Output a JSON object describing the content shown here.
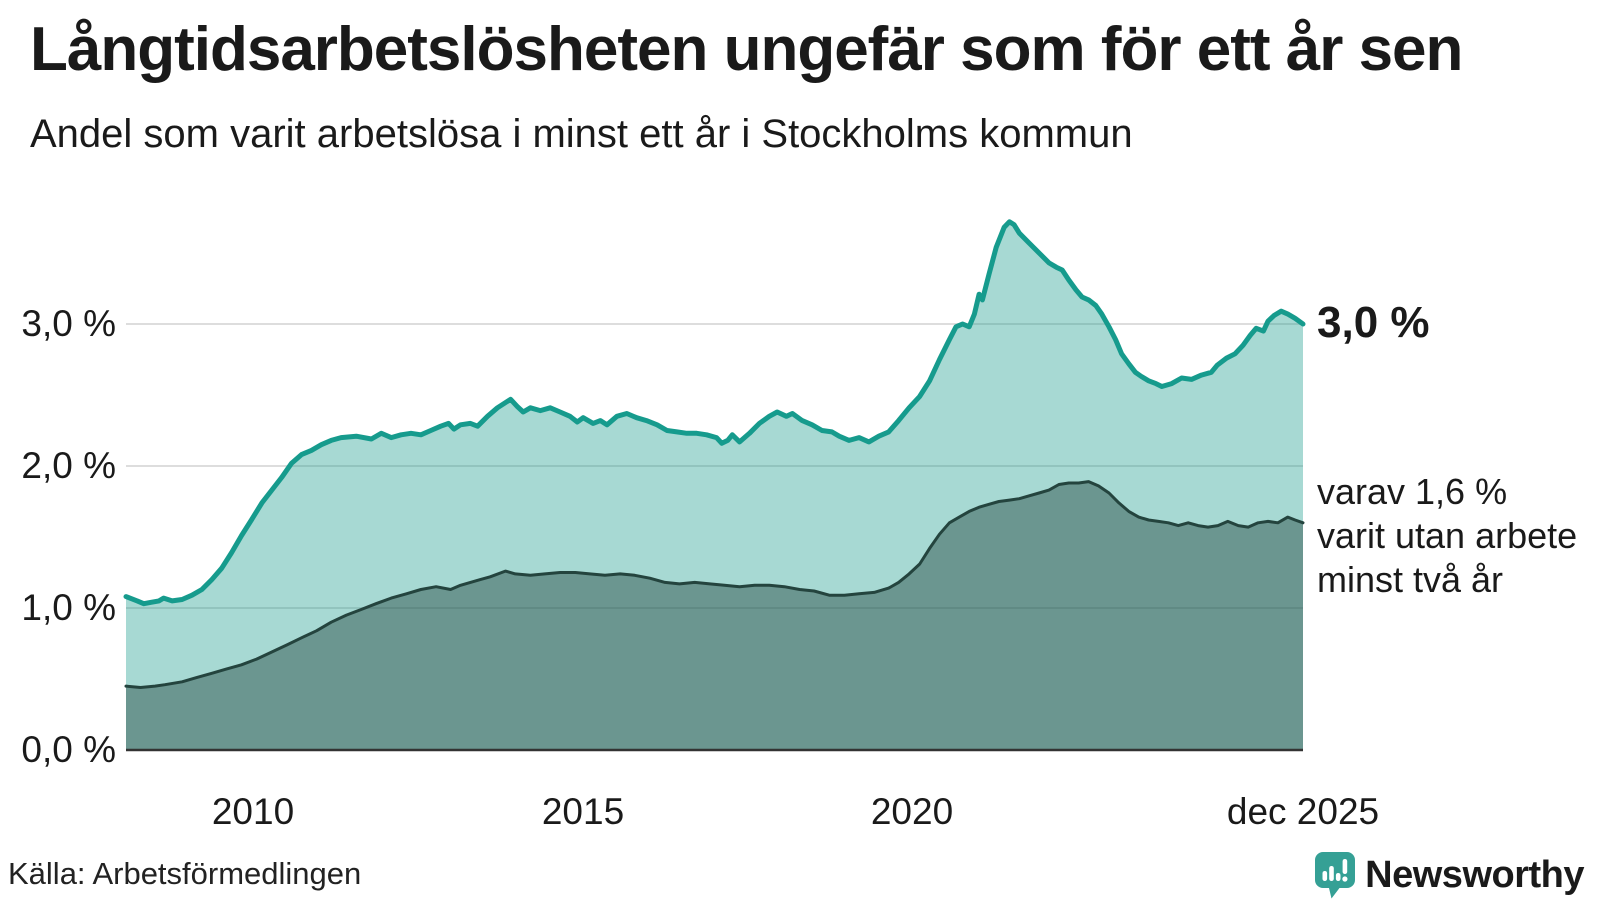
{
  "title": "Långtidsarbetslösheten ungefär som för ett år sen",
  "subtitle": "Andel som varit arbetslösa i minst ett år i Stockholms kommun",
  "source": "Källa: Arbetsförmedlingen",
  "branding": {
    "wordmark": "Newsworthy",
    "icon": "newsworthy-speech-bubble-bar-chart-icon",
    "color": "#35a095"
  },
  "annotations": {
    "total_end_label": "3,0 %",
    "two_year_lines": [
      "varav 1,6 %",
      "varit utan arbete",
      "minst två år"
    ]
  },
  "colors": {
    "total_line": "#169b8d",
    "total_fill": "rgba(23,154,140,0.38)",
    "two_year_line": "#24443e",
    "two_year_fill": "rgba(36,68,62,0.45)",
    "gridline": "#dddddd",
    "axis_line": "#333333",
    "text": "#1a1a1a"
  },
  "chart_data": {
    "type": "area",
    "title": "Långtidsarbetslösheten ungefär som för ett år sen",
    "subtitle": "Andel som varit arbetslösa i minst ett år i Stockholms kommun",
    "unit": "%",
    "x_domain": [
      2008.08,
      2025.92
    ],
    "ylim": [
      0,
      3.95
    ],
    "grid": "horizontal",
    "legend": "inline-annotations",
    "y_ticks": [
      {
        "value": 0,
        "label": "0,0 %"
      },
      {
        "value": 1,
        "label": "1,0 %"
      },
      {
        "value": 2,
        "label": "2,0 %"
      },
      {
        "value": 3,
        "label": "3,0 %"
      }
    ],
    "x_ticks": [
      {
        "year": 2010,
        "label": "2010"
      },
      {
        "year": 2015,
        "label": "2015"
      },
      {
        "year": 2020,
        "label": "2020"
      },
      {
        "year": 2025.92,
        "label": "dec 2025"
      }
    ],
    "series": [
      {
        "name": "Arbetslösa minst ett år (totalt)",
        "end_value": 3.0,
        "points": [
          [
            2008.08,
            1.08
          ],
          [
            2008.25,
            1.05
          ],
          [
            2008.35,
            1.03
          ],
          [
            2008.46,
            1.04
          ],
          [
            2008.58,
            1.05
          ],
          [
            2008.65,
            1.07
          ],
          [
            2008.78,
            1.05
          ],
          [
            2008.93,
            1.06
          ],
          [
            2009.08,
            1.09
          ],
          [
            2009.23,
            1.13
          ],
          [
            2009.38,
            1.2
          ],
          [
            2009.53,
            1.28
          ],
          [
            2009.68,
            1.39
          ],
          [
            2009.83,
            1.51
          ],
          [
            2009.98,
            1.62
          ],
          [
            2010.14,
            1.74
          ],
          [
            2010.29,
            1.83
          ],
          [
            2010.44,
            1.92
          ],
          [
            2010.59,
            2.02
          ],
          [
            2010.74,
            2.08
          ],
          [
            2010.89,
            2.11
          ],
          [
            2011.04,
            2.15
          ],
          [
            2011.19,
            2.18
          ],
          [
            2011.34,
            2.2
          ],
          [
            2011.57,
            2.21
          ],
          [
            2011.8,
            2.19
          ],
          [
            2011.95,
            2.23
          ],
          [
            2012.1,
            2.2
          ],
          [
            2012.25,
            2.22
          ],
          [
            2012.4,
            2.23
          ],
          [
            2012.55,
            2.22
          ],
          [
            2012.7,
            2.25
          ],
          [
            2012.85,
            2.28
          ],
          [
            2012.97,
            2.3
          ],
          [
            2013.05,
            2.26
          ],
          [
            2013.15,
            2.29
          ],
          [
            2013.3,
            2.3
          ],
          [
            2013.41,
            2.28
          ],
          [
            2013.56,
            2.35
          ],
          [
            2013.71,
            2.41
          ],
          [
            2013.91,
            2.47
          ],
          [
            2014.01,
            2.42
          ],
          [
            2014.1,
            2.38
          ],
          [
            2014.21,
            2.41
          ],
          [
            2014.36,
            2.39
          ],
          [
            2014.51,
            2.41
          ],
          [
            2014.66,
            2.38
          ],
          [
            2014.81,
            2.35
          ],
          [
            2014.92,
            2.31
          ],
          [
            2015.01,
            2.34
          ],
          [
            2015.16,
            2.3
          ],
          [
            2015.27,
            2.32
          ],
          [
            2015.37,
            2.29
          ],
          [
            2015.52,
            2.35
          ],
          [
            2015.67,
            2.37
          ],
          [
            2015.82,
            2.34
          ],
          [
            2015.97,
            2.32
          ],
          [
            2016.13,
            2.29
          ],
          [
            2016.28,
            2.25
          ],
          [
            2016.43,
            2.24
          ],
          [
            2016.58,
            2.23
          ],
          [
            2016.73,
            2.23
          ],
          [
            2016.88,
            2.22
          ],
          [
            2017.03,
            2.2
          ],
          [
            2017.11,
            2.16
          ],
          [
            2017.2,
            2.18
          ],
          [
            2017.27,
            2.22
          ],
          [
            2017.38,
            2.17
          ],
          [
            2017.53,
            2.23
          ],
          [
            2017.68,
            2.3
          ],
          [
            2017.83,
            2.35
          ],
          [
            2017.95,
            2.38
          ],
          [
            2018.09,
            2.35
          ],
          [
            2018.18,
            2.37
          ],
          [
            2018.33,
            2.32
          ],
          [
            2018.48,
            2.29
          ],
          [
            2018.63,
            2.25
          ],
          [
            2018.78,
            2.24
          ],
          [
            2018.89,
            2.21
          ],
          [
            2019.04,
            2.18
          ],
          [
            2019.19,
            2.2
          ],
          [
            2019.34,
            2.17
          ],
          [
            2019.49,
            2.21
          ],
          [
            2019.64,
            2.24
          ],
          [
            2019.79,
            2.32
          ],
          [
            2019.95,
            2.41
          ],
          [
            2020.11,
            2.49
          ],
          [
            2020.26,
            2.6
          ],
          [
            2020.41,
            2.75
          ],
          [
            2020.56,
            2.89
          ],
          [
            2020.66,
            2.98
          ],
          [
            2020.76,
            3.0
          ],
          [
            2020.86,
            2.98
          ],
          [
            2020.94,
            3.07
          ],
          [
            2021.01,
            3.21
          ],
          [
            2021.06,
            3.17
          ],
          [
            2021.16,
            3.35
          ],
          [
            2021.27,
            3.54
          ],
          [
            2021.39,
            3.68
          ],
          [
            2021.47,
            3.72
          ],
          [
            2021.54,
            3.7
          ],
          [
            2021.62,
            3.64
          ],
          [
            2021.77,
            3.57
          ],
          [
            2021.92,
            3.5
          ],
          [
            2022.07,
            3.43
          ],
          [
            2022.18,
            3.4
          ],
          [
            2022.27,
            3.38
          ],
          [
            2022.37,
            3.31
          ],
          [
            2022.48,
            3.24
          ],
          [
            2022.57,
            3.19
          ],
          [
            2022.67,
            3.17
          ],
          [
            2022.78,
            3.13
          ],
          [
            2022.87,
            3.07
          ],
          [
            2022.98,
            2.98
          ],
          [
            2023.08,
            2.89
          ],
          [
            2023.17,
            2.79
          ],
          [
            2023.28,
            2.72
          ],
          [
            2023.38,
            2.66
          ],
          [
            2023.47,
            2.63
          ],
          [
            2023.58,
            2.6
          ],
          [
            2023.69,
            2.58
          ],
          [
            2023.78,
            2.56
          ],
          [
            2023.93,
            2.58
          ],
          [
            2024.08,
            2.62
          ],
          [
            2024.23,
            2.61
          ],
          [
            2024.38,
            2.64
          ],
          [
            2024.53,
            2.66
          ],
          [
            2024.62,
            2.71
          ],
          [
            2024.76,
            2.76
          ],
          [
            2024.89,
            2.79
          ],
          [
            2025.01,
            2.85
          ],
          [
            2025.12,
            2.92
          ],
          [
            2025.21,
            2.97
          ],
          [
            2025.32,
            2.95
          ],
          [
            2025.39,
            3.02
          ],
          [
            2025.48,
            3.06
          ],
          [
            2025.59,
            3.09
          ],
          [
            2025.69,
            3.07
          ],
          [
            2025.8,
            3.04
          ],
          [
            2025.92,
            3.0
          ]
        ]
      },
      {
        "name": "varav utan arbete minst två år",
        "end_value": 1.6,
        "points": [
          [
            2008.08,
            0.45
          ],
          [
            2008.3,
            0.44
          ],
          [
            2008.52,
            0.45
          ],
          [
            2008.67,
            0.46
          ],
          [
            2008.93,
            0.48
          ],
          [
            2009.15,
            0.51
          ],
          [
            2009.38,
            0.54
          ],
          [
            2009.6,
            0.57
          ],
          [
            2009.83,
            0.6
          ],
          [
            2010.06,
            0.64
          ],
          [
            2010.29,
            0.69
          ],
          [
            2010.52,
            0.74
          ],
          [
            2010.74,
            0.79
          ],
          [
            2010.97,
            0.84
          ],
          [
            2011.19,
            0.9
          ],
          [
            2011.42,
            0.95
          ],
          [
            2011.65,
            0.99
          ],
          [
            2011.87,
            1.03
          ],
          [
            2012.1,
            1.07
          ],
          [
            2012.33,
            1.1
          ],
          [
            2012.55,
            1.13
          ],
          [
            2012.78,
            1.15
          ],
          [
            2013.0,
            1.13
          ],
          [
            2013.15,
            1.16
          ],
          [
            2013.3,
            1.18
          ],
          [
            2013.45,
            1.2
          ],
          [
            2013.6,
            1.22
          ],
          [
            2013.83,
            1.26
          ],
          [
            2013.98,
            1.24
          ],
          [
            2014.21,
            1.23
          ],
          [
            2014.43,
            1.24
          ],
          [
            2014.66,
            1.25
          ],
          [
            2014.89,
            1.25
          ],
          [
            2015.11,
            1.24
          ],
          [
            2015.34,
            1.23
          ],
          [
            2015.57,
            1.24
          ],
          [
            2015.79,
            1.23
          ],
          [
            2016.02,
            1.21
          ],
          [
            2016.25,
            1.18
          ],
          [
            2016.47,
            1.17
          ],
          [
            2016.7,
            1.18
          ],
          [
            2016.93,
            1.17
          ],
          [
            2017.15,
            1.16
          ],
          [
            2017.38,
            1.15
          ],
          [
            2017.61,
            1.16
          ],
          [
            2017.83,
            1.16
          ],
          [
            2018.06,
            1.15
          ],
          [
            2018.29,
            1.13
          ],
          [
            2018.51,
            1.12
          ],
          [
            2018.74,
            1.09
          ],
          [
            2018.97,
            1.09
          ],
          [
            2019.19,
            1.1
          ],
          [
            2019.42,
            1.11
          ],
          [
            2019.64,
            1.14
          ],
          [
            2019.79,
            1.18
          ],
          [
            2019.95,
            1.24
          ],
          [
            2020.11,
            1.31
          ],
          [
            2020.26,
            1.42
          ],
          [
            2020.41,
            1.52
          ],
          [
            2020.56,
            1.6
          ],
          [
            2020.71,
            1.64
          ],
          [
            2020.86,
            1.68
          ],
          [
            2021.01,
            1.71
          ],
          [
            2021.16,
            1.73
          ],
          [
            2021.31,
            1.75
          ],
          [
            2021.47,
            1.76
          ],
          [
            2021.62,
            1.77
          ],
          [
            2021.77,
            1.79
          ],
          [
            2021.92,
            1.81
          ],
          [
            2022.07,
            1.83
          ],
          [
            2022.22,
            1.87
          ],
          [
            2022.37,
            1.88
          ],
          [
            2022.52,
            1.88
          ],
          [
            2022.67,
            1.89
          ],
          [
            2022.82,
            1.86
          ],
          [
            2022.98,
            1.81
          ],
          [
            2023.13,
            1.74
          ],
          [
            2023.28,
            1.68
          ],
          [
            2023.43,
            1.64
          ],
          [
            2023.58,
            1.62
          ],
          [
            2023.73,
            1.61
          ],
          [
            2023.88,
            1.6
          ],
          [
            2024.03,
            1.58
          ],
          [
            2024.18,
            1.6
          ],
          [
            2024.33,
            1.58
          ],
          [
            2024.48,
            1.57
          ],
          [
            2024.63,
            1.58
          ],
          [
            2024.78,
            1.61
          ],
          [
            2024.94,
            1.58
          ],
          [
            2025.09,
            1.57
          ],
          [
            2025.24,
            1.6
          ],
          [
            2025.39,
            1.61
          ],
          [
            2025.54,
            1.6
          ],
          [
            2025.69,
            1.64
          ],
          [
            2025.8,
            1.62
          ],
          [
            2025.92,
            1.6
          ]
        ]
      }
    ]
  }
}
